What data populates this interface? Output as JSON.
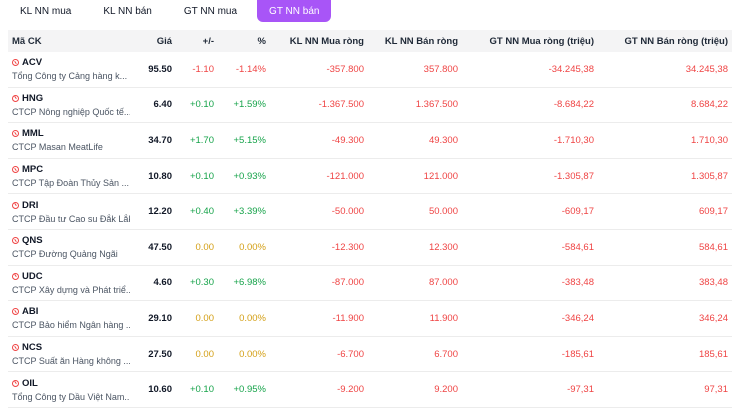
{
  "tabs": [
    {
      "label": "KL NN mua",
      "active": false
    },
    {
      "label": "KL NN bán",
      "active": false
    },
    {
      "label": "GT NN mua",
      "active": false
    },
    {
      "label": "GT NN bán",
      "active": true
    }
  ],
  "headers": {
    "symbol": "Mã CK",
    "price": "Giá",
    "change": "+/-",
    "percent": "%",
    "kl_mua": "KL NN Mua ròng",
    "kl_ban": "KL NN Bán ròng",
    "gt_mua": "GT NN Mua ròng (triệu)",
    "gt_ban": "GT NN Bán ròng (triệu)"
  },
  "colors": {
    "accent": "#a855f7",
    "down": "#ef4444",
    "up": "#16a34a",
    "ref": "#d4a017"
  },
  "rows": [
    {
      "symbol": "ACV",
      "company": "Tổng Công ty Cảng hàng k...",
      "price": "95.50",
      "change": "-1.10",
      "percent": "-1.14%",
      "kl_mua": "-357.800",
      "kl_ban": "357.800",
      "gt_mua": "-34.245,38",
      "gt_ban": "34.245,38",
      "trend": "red"
    },
    {
      "symbol": "HNG",
      "company": "CTCP Nông nghiệp Quốc tế...",
      "price": "6.40",
      "change": "+0.10",
      "percent": "+1.59%",
      "kl_mua": "-1.367.500",
      "kl_ban": "1.367.500",
      "gt_mua": "-8.684,22",
      "gt_ban": "8.684,22",
      "trend": "green"
    },
    {
      "symbol": "MML",
      "company": "CTCP Masan MeatLife",
      "price": "34.70",
      "change": "+1.70",
      "percent": "+5.15%",
      "kl_mua": "-49.300",
      "kl_ban": "49.300",
      "gt_mua": "-1.710,30",
      "gt_ban": "1.710,30",
      "trend": "green"
    },
    {
      "symbol": "MPC",
      "company": "CTCP Tập Đoàn Thủy Sản ...",
      "price": "10.80",
      "change": "+0.10",
      "percent": "+0.93%",
      "kl_mua": "-121.000",
      "kl_ban": "121.000",
      "gt_mua": "-1.305,87",
      "gt_ban": "1.305,87",
      "trend": "green"
    },
    {
      "symbol": "DRI",
      "company": "CTCP Đầu tư Cao su Đắk Lắk",
      "price": "12.20",
      "change": "+0.40",
      "percent": "+3.39%",
      "kl_mua": "-50.000",
      "kl_ban": "50.000",
      "gt_mua": "-609,17",
      "gt_ban": "609,17",
      "trend": "green"
    },
    {
      "symbol": "QNS",
      "company": "CTCP Đường Quảng Ngãi",
      "price": "47.50",
      "change": "0.00",
      "percent": "0.00%",
      "kl_mua": "-12.300",
      "kl_ban": "12.300",
      "gt_mua": "-584,61",
      "gt_ban": "584,61",
      "trend": "yellow"
    },
    {
      "symbol": "UDC",
      "company": "CTCP Xây dựng và Phát triể...",
      "price": "4.60",
      "change": "+0.30",
      "percent": "+6.98%",
      "kl_mua": "-87.000",
      "kl_ban": "87.000",
      "gt_mua": "-383,48",
      "gt_ban": "383,48",
      "trend": "green"
    },
    {
      "symbol": "ABI",
      "company": "CTCP Bảo hiểm Ngân hàng ...",
      "price": "29.10",
      "change": "0.00",
      "percent": "0.00%",
      "kl_mua": "-11.900",
      "kl_ban": "11.900",
      "gt_mua": "-346,24",
      "gt_ban": "346,24",
      "trend": "yellow"
    },
    {
      "symbol": "NCS",
      "company": "CTCP Suất ăn Hàng không ...",
      "price": "27.50",
      "change": "0.00",
      "percent": "0.00%",
      "kl_mua": "-6.700",
      "kl_ban": "6.700",
      "gt_mua": "-185,61",
      "gt_ban": "185,61",
      "trend": "yellow"
    },
    {
      "symbol": "OIL",
      "company": "Tổng Công ty Dầu Việt Nam...",
      "price": "10.60",
      "change": "+0.10",
      "percent": "+0.95%",
      "kl_mua": "-9.200",
      "kl_ban": "9.200",
      "gt_mua": "-97,31",
      "gt_ban": "97,31",
      "trend": "green"
    }
  ]
}
